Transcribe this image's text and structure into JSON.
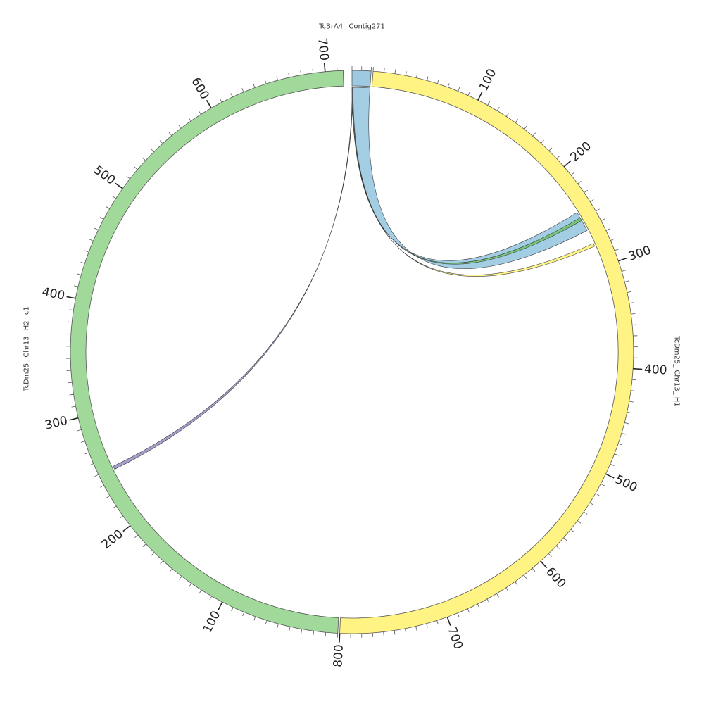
{
  "segments": [
    {
      "id": "contig",
      "name": "TcBrA4_ Contig271",
      "length": 20,
      "color": "#9ecae1"
    },
    {
      "id": "h1",
      "name": "TcDm25_ Chr13_ H1",
      "length": 800,
      "color": "#fff384"
    },
    {
      "id": "h2",
      "name": "TcDm25_ Chr13_ H2_ c1",
      "length": 715,
      "color": "#a1d99b"
    }
  ],
  "ticks": {
    "minor_step": 10,
    "major_step": 100
  },
  "links": [
    {
      "from_segment": "contig",
      "from_start": 0,
      "from_end": 20,
      "to_segment": "h1",
      "to_start": 242,
      "to_end": 262,
      "color": "#9ecae1"
    },
    {
      "from_segment": "contig",
      "from_start": 0.5,
      "from_end": 1.2,
      "to_segment": "h1",
      "to_start": 248,
      "to_end": 251,
      "color": "#74c476"
    },
    {
      "from_segment": "contig",
      "from_start": 0.1,
      "from_end": 0.8,
      "to_segment": "h1",
      "to_start": 276,
      "to_end": 279,
      "color": "#fff384"
    },
    {
      "from_segment": "contig",
      "from_start": 0.2,
      "from_end": 0.9,
      "to_segment": "h2",
      "to_start": 248,
      "to_end": 251,
      "color": "#9e9ac8"
    }
  ]
}
